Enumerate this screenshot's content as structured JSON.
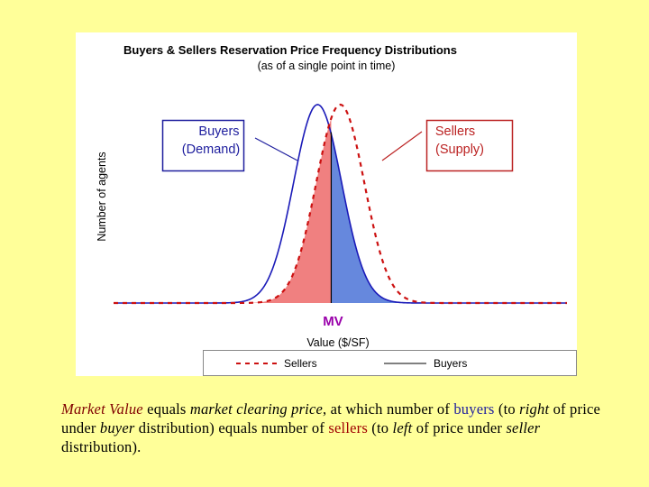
{
  "chart_data": {
    "type": "area",
    "title": "Buyers & Sellers Reservation Price Frequency Distributions",
    "subtitle": "(as of a single point in time)",
    "xlabel": "Value ($/SF)",
    "ylabel": "Number of agents",
    "x_range": [
      0,
      100
    ],
    "y_range": [
      0,
      1
    ],
    "grid": false,
    "series": [
      {
        "name": "Buyers",
        "style": "solid",
        "color": "#1a1ab8",
        "distribution": "normal",
        "mean": 45,
        "sd": 5.3,
        "peak": 1.0
      },
      {
        "name": "Sellers",
        "style": "dashed",
        "color": "#cc1111",
        "distribution": "normal",
        "mean": 50,
        "sd": 5.3,
        "peak": 1.0
      }
    ],
    "market_value": {
      "label": "MV",
      "x": 48,
      "color": "#9900aa"
    },
    "shaded_regions": [
      {
        "name": "sellers-left-of-price",
        "color": "#f08080"
      },
      {
        "name": "buyers-right-of-price",
        "color": "#6688dd"
      }
    ],
    "annotations": [
      {
        "line1": "Buyers",
        "line2": "(Demand)",
        "color": "#1e1e9e"
      },
      {
        "line1": "Sellers",
        "line2": "(Supply)",
        "color": "#bb2222"
      }
    ],
    "legend": {
      "placement": "bottom",
      "items": [
        {
          "label": "Sellers",
          "style": "dashed",
          "color": "#cc1111"
        },
        {
          "label": "Buyers",
          "style": "solid",
          "color": "#000000"
        }
      ]
    }
  },
  "caption": {
    "mv_text": "Market Value",
    "t1": " equals ",
    "clearing_text": "market clearing price",
    "t2": ", at which number of ",
    "buyers_word": "buyers",
    "t3": " (to ",
    "right_word": "right",
    "t4": " of price under ",
    "buyer_word": "buyer",
    "t5": " distribution) equals number of ",
    "sellers_word": "sellers",
    "t6": " (to ",
    "left_word": "left",
    "t7": " of price under ",
    "seller_word": "seller",
    "t8": " distribution)."
  }
}
